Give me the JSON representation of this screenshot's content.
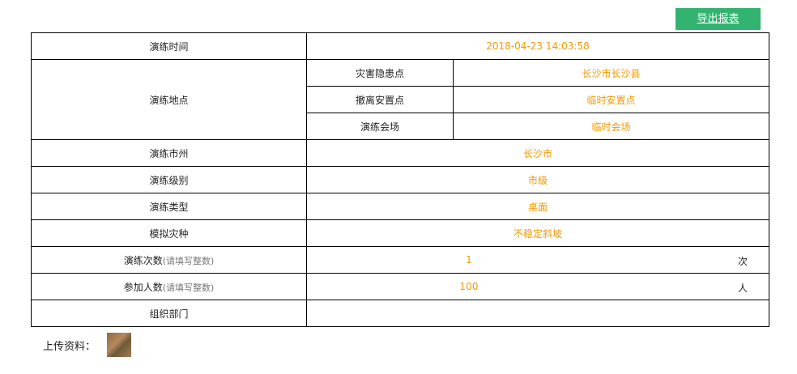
{
  "export_button": "导出报表",
  "rows": {
    "time": {
      "label": "演练时间",
      "value": "2018-04-23 14:03:58"
    },
    "location": {
      "label": "演练地点",
      "sub": [
        {
          "label": "灾害隐患点",
          "value": "长沙市长沙县"
        },
        {
          "label": "撤离安置点",
          "value": "临时安置点"
        },
        {
          "label": "演练会场",
          "value": "临时会场"
        }
      ]
    },
    "city": {
      "label": "演练市州",
      "value": "长沙市"
    },
    "level": {
      "label": "演练级别",
      "value": "市级"
    },
    "type": {
      "label": "演练类型",
      "value": "桌面"
    },
    "disaster": {
      "label": "模拟灾种",
      "value": "不稳定斜坡"
    },
    "count": {
      "label": "演练次数",
      "hint": "(请填写整数)",
      "value": "1",
      "unit": "次"
    },
    "people": {
      "label": "参加人数",
      "hint": "(请填写整数)",
      "value": "100",
      "unit": "人"
    },
    "org": {
      "label": "组织部门",
      "value": ""
    }
  },
  "upload": {
    "label": "上传资料："
  }
}
